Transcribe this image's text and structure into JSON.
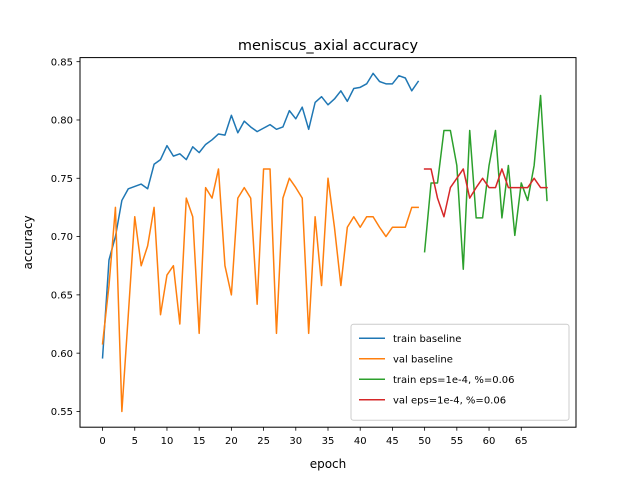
{
  "chart_data": {
    "type": "line",
    "title": "meniscus_axial accuracy",
    "xlabel": "epoch",
    "ylabel": "accuracy",
    "xlim": [
      -3.5,
      73.5
    ],
    "ylim": [
      0.5365,
      0.8535
    ],
    "xticks": [
      0,
      5,
      10,
      15,
      20,
      25,
      30,
      35,
      40,
      45,
      50,
      55,
      60,
      65
    ],
    "yticks": [
      0.55,
      0.6,
      0.65,
      0.7,
      0.75,
      0.8,
      0.85
    ],
    "grid": false,
    "legend_position": "lower right",
    "series": [
      {
        "name": "train baseline",
        "color": "#1f77b4",
        "x": [
          0,
          1,
          2,
          3,
          4,
          5,
          6,
          7,
          8,
          9,
          10,
          11,
          12,
          13,
          14,
          15,
          16,
          17,
          18,
          19,
          20,
          21,
          22,
          23,
          24,
          25,
          26,
          27,
          28,
          29,
          30,
          31,
          32,
          33,
          34,
          35,
          36,
          37,
          38,
          39,
          40,
          41,
          42,
          43,
          44,
          45,
          46,
          47,
          48,
          49
        ],
        "y": [
          0.596,
          0.68,
          0.7,
          0.731,
          0.741,
          0.743,
          0.745,
          0.741,
          0.762,
          0.766,
          0.778,
          0.769,
          0.771,
          0.766,
          0.777,
          0.772,
          0.779,
          0.783,
          0.788,
          0.787,
          0.804,
          0.789,
          0.799,
          0.794,
          0.79,
          0.793,
          0.796,
          0.792,
          0.794,
          0.808,
          0.801,
          0.811,
          0.792,
          0.815,
          0.82,
          0.813,
          0.818,
          0.825,
          0.816,
          0.827,
          0.828,
          0.831,
          0.84,
          0.833,
          0.831,
          0.831,
          0.838,
          0.836,
          0.825,
          0.833
        ]
      },
      {
        "name": "val baseline",
        "color": "#ff7f0e",
        "x": [
          0,
          1,
          2,
          3,
          4,
          5,
          6,
          7,
          8,
          9,
          10,
          11,
          12,
          13,
          14,
          15,
          16,
          17,
          18,
          19,
          20,
          21,
          22,
          23,
          24,
          25,
          26,
          27,
          28,
          29,
          30,
          31,
          32,
          33,
          34,
          35,
          36,
          37,
          38,
          39,
          40,
          41,
          42,
          43,
          44,
          45,
          46,
          47,
          48,
          49
        ],
        "y": [
          0.608,
          0.658,
          0.725,
          0.55,
          0.633,
          0.717,
          0.675,
          0.692,
          0.725,
          0.633,
          0.667,
          0.675,
          0.625,
          0.733,
          0.717,
          0.617,
          0.742,
          0.733,
          0.758,
          0.675,
          0.65,
          0.733,
          0.742,
          0.733,
          0.642,
          0.758,
          0.758,
          0.617,
          0.733,
          0.75,
          0.742,
          0.733,
          0.617,
          0.717,
          0.658,
          0.75,
          0.708,
          0.658,
          0.708,
          0.717,
          0.708,
          0.717,
          0.717,
          0.708,
          0.7,
          0.708,
          0.708,
          0.708,
          0.725,
          0.725
        ]
      },
      {
        "name": "train eps=1e-4, %=0.06",
        "color": "#2ca02c",
        "x": [
          50,
          51,
          52,
          53,
          54,
          55,
          56,
          57,
          58,
          59,
          60,
          61,
          62,
          63,
          64,
          65,
          66,
          67,
          68,
          69
        ],
        "y": [
          0.687,
          0.746,
          0.746,
          0.791,
          0.791,
          0.761,
          0.672,
          0.791,
          0.716,
          0.716,
          0.761,
          0.791,
          0.716,
          0.761,
          0.701,
          0.746,
          0.731,
          0.761,
          0.821,
          0.731
        ]
      },
      {
        "name": "val eps=1e-4, %=0.06",
        "color": "#d62728",
        "x": [
          50,
          51,
          52,
          53,
          54,
          55,
          56,
          57,
          58,
          59,
          60,
          61,
          62,
          63,
          64,
          65,
          66,
          67,
          68,
          69
        ],
        "y": [
          0.758,
          0.758,
          0.733,
          0.717,
          0.742,
          0.75,
          0.758,
          0.733,
          0.742,
          0.75,
          0.742,
          0.742,
          0.758,
          0.742,
          0.742,
          0.742,
          0.742,
          0.75,
          0.742,
          0.742
        ]
      }
    ]
  }
}
